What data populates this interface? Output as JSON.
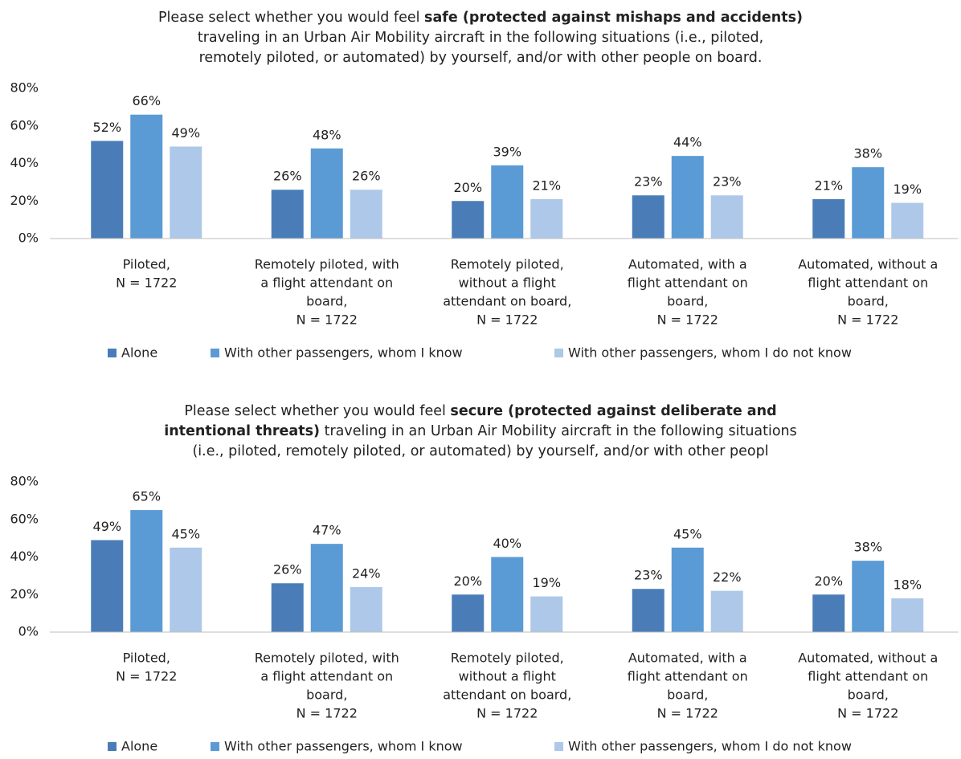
{
  "chart_data": [
    {
      "type": "bar",
      "title_lines": [
        [
          {
            "text": "Please select whether you would feel ",
            "bold": false
          },
          {
            "text": "safe (protected against mishaps and accidents)",
            "bold": true
          }
        ],
        [
          {
            "text": "traveling in an Urban Air Mobility aircraft in the following situations (i.e., piloted,",
            "bold": false
          }
        ],
        [
          {
            "text": "remotely piloted, or automated) by yourself, and/or with other people on board.",
            "bold": false
          }
        ]
      ],
      "categories": [
        [
          "Piloted,",
          "N = 1722"
        ],
        [
          "Remotely piloted, with",
          "a flight attendant on",
          "board,",
          "N = 1722"
        ],
        [
          "Remotely piloted,",
          "without a flight",
          "attendant on board,",
          "N = 1722"
        ],
        [
          "Automated, with a",
          "flight attendant on",
          "board,",
          "N = 1722"
        ],
        [
          "Automated, without a",
          "flight attendant on",
          "board,",
          "N = 1722"
        ]
      ],
      "series": [
        {
          "name": "Alone",
          "color": "#4a7db8",
          "values": [
            52,
            26,
            20,
            23,
            21
          ],
          "value_labels": [
            "52%",
            "26%",
            "20%",
            "23%",
            "21%"
          ]
        },
        {
          "name": "With other passengers, whom I know",
          "color": "#5b9bd5",
          "values": [
            66,
            48,
            39,
            44,
            38
          ],
          "value_labels": [
            "66%",
            "48%",
            "39%",
            "44%",
            "38%"
          ]
        },
        {
          "name": "With other passengers, whom I do not know",
          "color": "#adc8e8",
          "values": [
            49,
            26,
            21,
            23,
            19
          ],
          "value_labels": [
            "49%",
            "26%",
            "21%",
            "23%",
            "19%"
          ]
        }
      ],
      "ylim": [
        0,
        80
      ],
      "yticks": [
        {
          "value": 0,
          "label": "0%"
        },
        {
          "value": 20,
          "label": "20%"
        },
        {
          "value": 40,
          "label": "40%"
        },
        {
          "value": 60,
          "label": "60%"
        },
        {
          "value": 80,
          "label": "80%"
        }
      ],
      "grid": false,
      "legend": "bottom"
    },
    {
      "type": "bar",
      "title_lines": [
        [
          {
            "text": "Please select whether you would feel ",
            "bold": false
          },
          {
            "text": "secure (protected against deliberate and",
            "bold": true
          }
        ],
        [
          {
            "text": "intentional threats)",
            "bold": true
          },
          {
            "text": " traveling in an Urban Air Mobility aircraft in the following situations",
            "bold": false
          }
        ],
        [
          {
            "text": "(i.e., piloted, remotely piloted, or automated) by yourself, and/or with other peopl",
            "bold": false
          }
        ]
      ],
      "categories": [
        [
          "Piloted,",
          "N = 1722"
        ],
        [
          "Remotely piloted, with",
          "a flight attendant on",
          "board,",
          "N = 1722"
        ],
        [
          "Remotely piloted,",
          "without a flight",
          "attendant on board,",
          "N = 1722"
        ],
        [
          "Automated, with a",
          "flight attendant on",
          "board,",
          "N = 1722"
        ],
        [
          "Automated, without a",
          "flight attendant on",
          "board,",
          "N = 1722"
        ]
      ],
      "series": [
        {
          "name": "Alone",
          "color": "#4a7db8",
          "values": [
            49,
            26,
            20,
            23,
            20
          ],
          "value_labels": [
            "49%",
            "26%",
            "20%",
            "23%",
            "20%"
          ]
        },
        {
          "name": "With other passengers, whom I know",
          "color": "#5b9bd5",
          "values": [
            65,
            47,
            40,
            45,
            38
          ],
          "value_labels": [
            "65%",
            "47%",
            "40%",
            "45%",
            "38%"
          ]
        },
        {
          "name": "With other passengers, whom I do not know",
          "color": "#adc8e8",
          "values": [
            45,
            24,
            19,
            22,
            18
          ],
          "value_labels": [
            "45%",
            "24%",
            "19%",
            "22%",
            "18%"
          ]
        }
      ],
      "ylim": [
        0,
        80
      ],
      "yticks": [
        {
          "value": 0,
          "label": "0%"
        },
        {
          "value": 20,
          "label": "20%"
        },
        {
          "value": 40,
          "label": "40%"
        },
        {
          "value": 60,
          "label": "60%"
        },
        {
          "value": 80,
          "label": "80%"
        }
      ],
      "grid": false,
      "legend": "bottom"
    }
  ]
}
